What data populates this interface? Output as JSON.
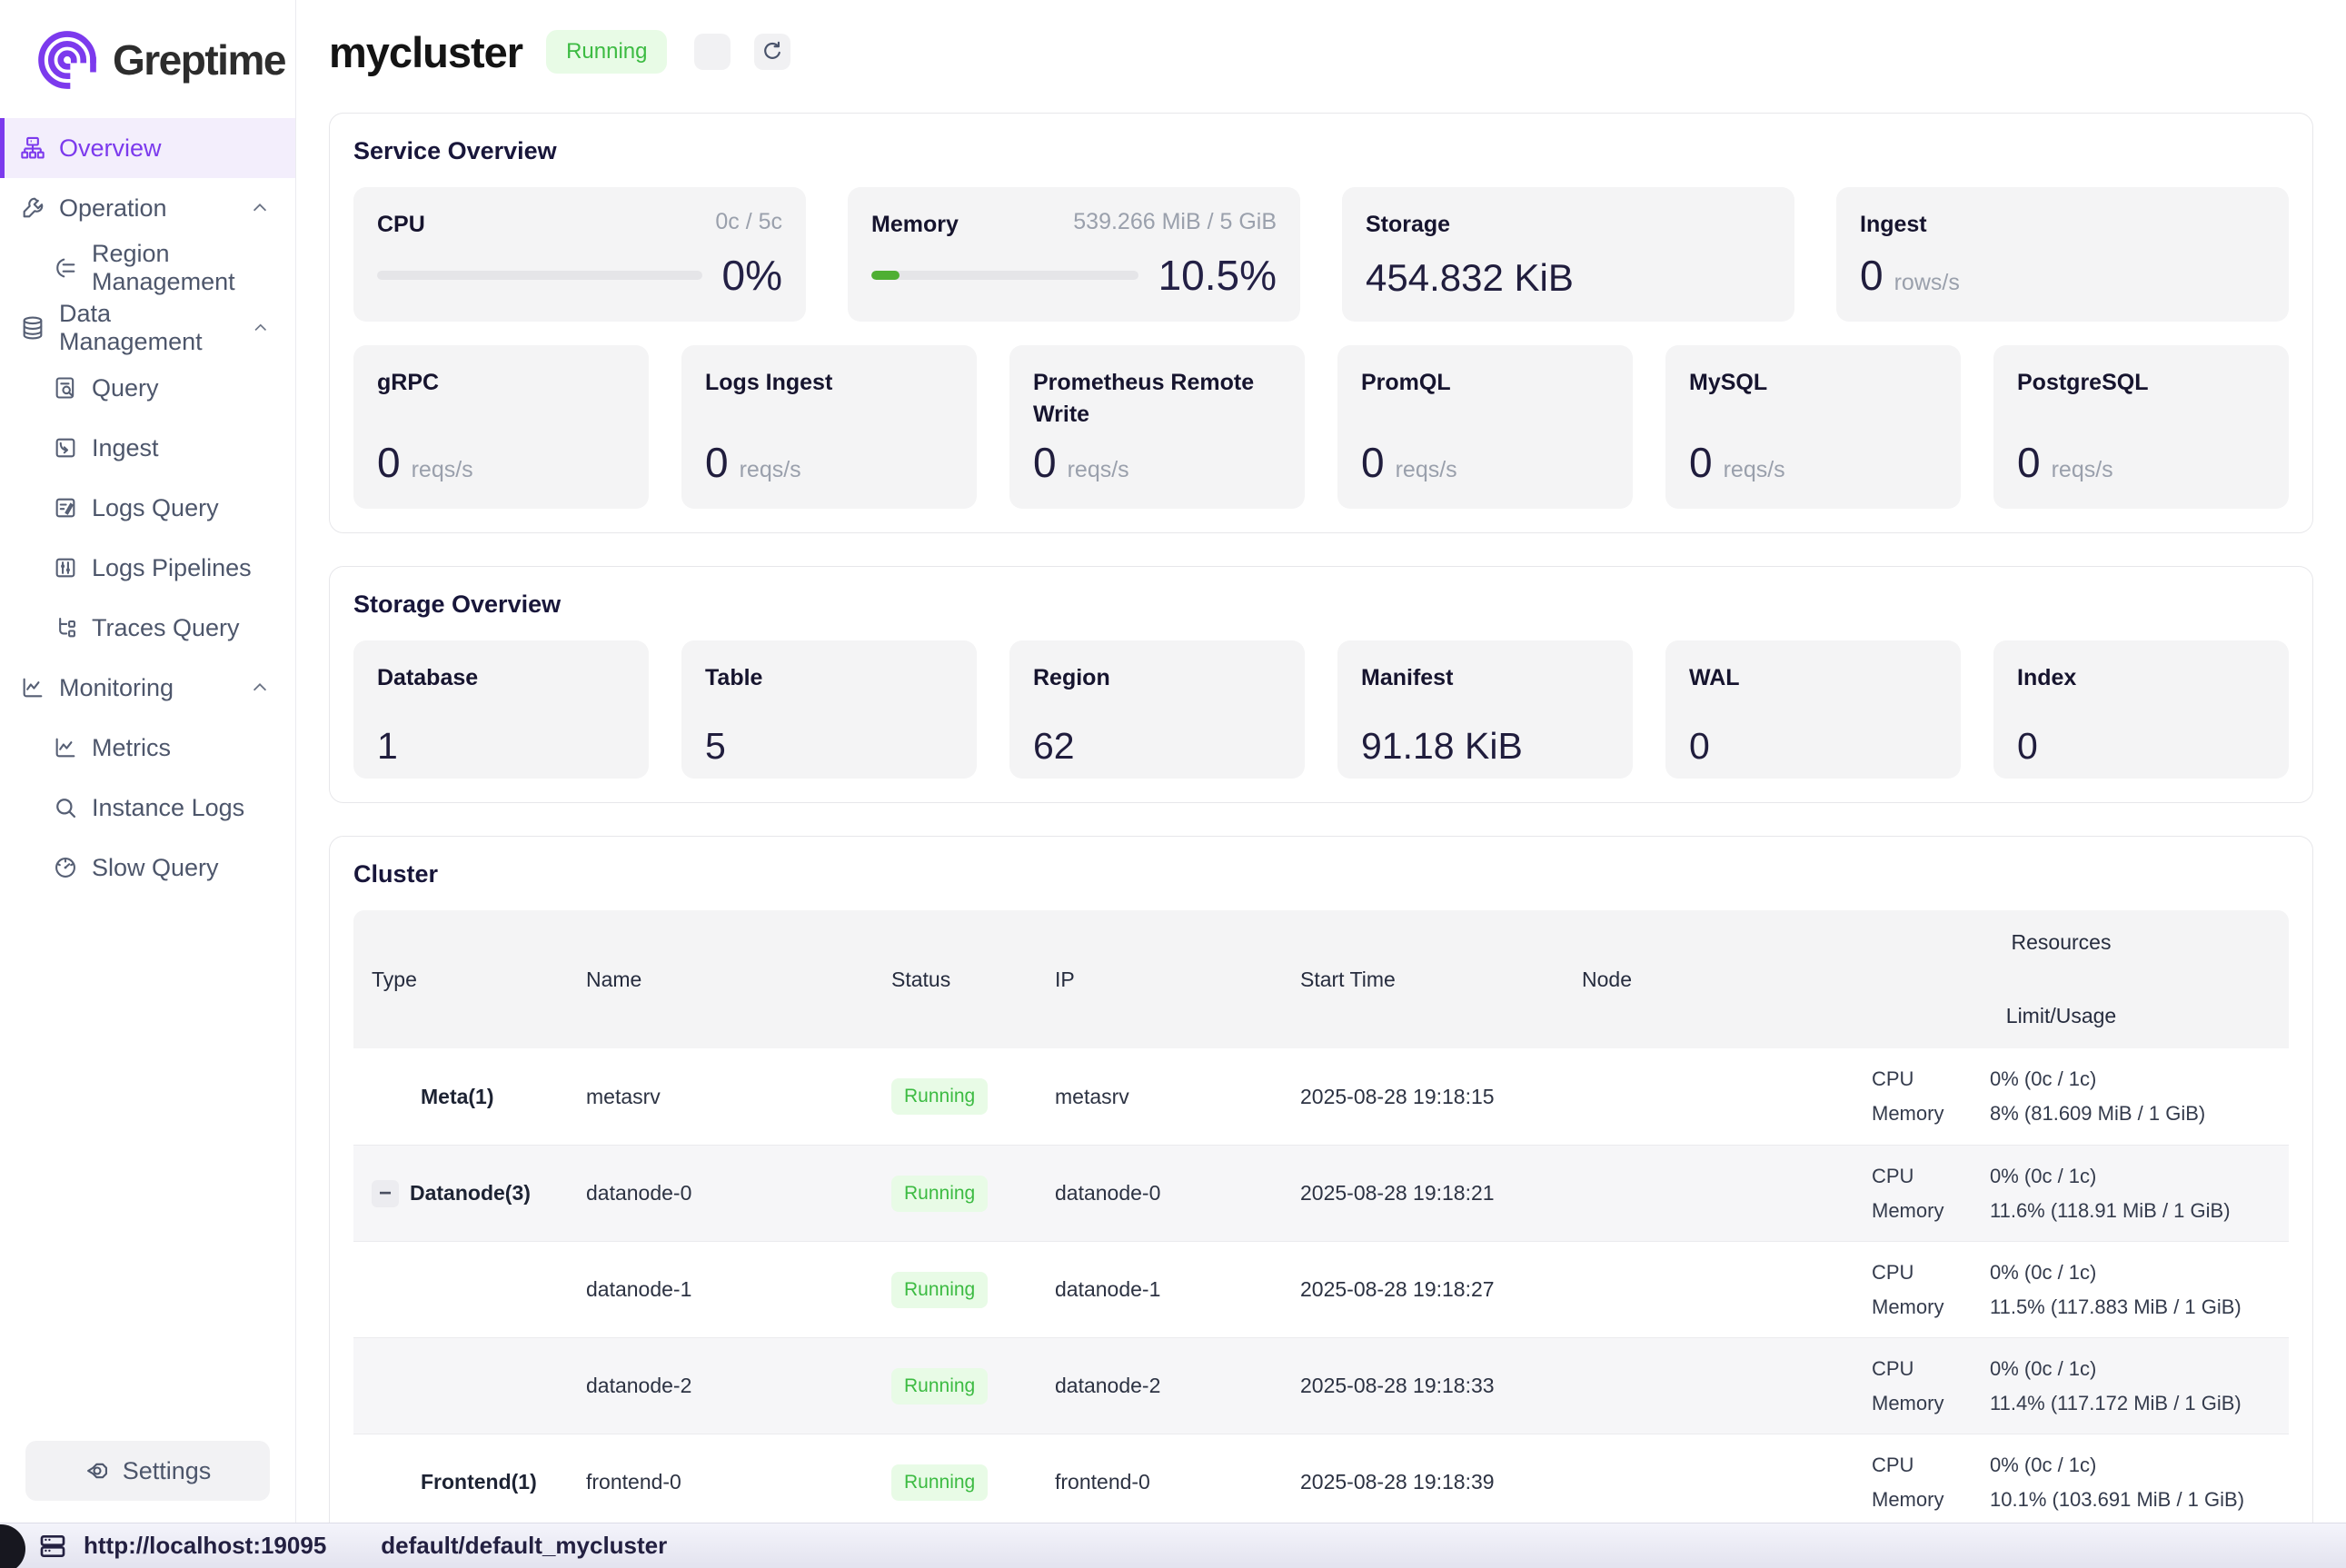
{
  "colors": {
    "accent_purple": "#7c3aed",
    "progress_green": "#4faf33",
    "badge_green_text": "#3cbb42",
    "badge_green_bg": "#e8fbe6",
    "card_bg": "#f4f4f5",
    "dark_text": "#1d1b38"
  },
  "brand": {
    "name": "Greptime",
    "logo_icon": "greptime-spiral-icon"
  },
  "sidebar": {
    "items": [
      {
        "label": "Overview",
        "icon": "overview-cluster-icon",
        "active": true
      },
      {
        "label": "Operation",
        "icon": "wrench-icon",
        "group": true
      },
      {
        "label": "Region Management",
        "icon": "region-management-icon"
      },
      {
        "label": "Data Management",
        "icon": "database-icon",
        "group": true
      },
      {
        "label": "Query",
        "icon": "query-doc-icon"
      },
      {
        "label": "Ingest",
        "icon": "ingest-folder-icon"
      },
      {
        "label": "Logs Query",
        "icon": "logs-query-icon"
      },
      {
        "label": "Logs Pipelines",
        "icon": "pipelines-sliders-icon"
      },
      {
        "label": "Traces Query",
        "icon": "traces-tree-icon"
      },
      {
        "label": "Monitoring",
        "icon": "monitor-chart-icon",
        "group": true
      },
      {
        "label": "Metrics",
        "icon": "metrics-chart-icon"
      },
      {
        "label": "Instance Logs",
        "icon": "search-icon"
      },
      {
        "label": "Slow Query",
        "icon": "gauge-icon"
      }
    ],
    "settings_label": "Settings"
  },
  "header": {
    "title": "mycluster",
    "status_badge": "Running"
  },
  "service_overview": {
    "title": "Service Overview",
    "cpu": {
      "title": "CPU",
      "limit": "0c / 5c",
      "percent": "0%",
      "bar_width": "0%"
    },
    "memory": {
      "title": "Memory",
      "limit": "539.266 MiB / 5 GiB",
      "percent": "10.5%",
      "bar_width": "10.5%"
    },
    "storage": {
      "title": "Storage",
      "value": "454.832 KiB"
    },
    "ingest": {
      "title": "Ingest",
      "value": "0",
      "unit": "rows/s"
    },
    "rate_cards": [
      {
        "title": "gRPC",
        "value": "0",
        "unit": "reqs/s"
      },
      {
        "title": "Logs Ingest",
        "value": "0",
        "unit": "reqs/s"
      },
      {
        "title": "Prometheus Remote Write",
        "value": "0",
        "unit": "reqs/s"
      },
      {
        "title": "PromQL",
        "value": "0",
        "unit": "reqs/s"
      },
      {
        "title": "MySQL",
        "value": "0",
        "unit": "reqs/s"
      },
      {
        "title": "PostgreSQL",
        "value": "0",
        "unit": "reqs/s"
      }
    ]
  },
  "storage_overview": {
    "title": "Storage Overview",
    "cards": [
      {
        "title": "Database",
        "value": "1"
      },
      {
        "title": "Table",
        "value": "5"
      },
      {
        "title": "Region",
        "value": "62"
      },
      {
        "title": "Manifest",
        "value": "91.18 KiB"
      },
      {
        "title": "WAL",
        "value": "0"
      },
      {
        "title": "Index",
        "value": "0"
      }
    ]
  },
  "cluster": {
    "title": "Cluster",
    "columns": {
      "type": "Type",
      "name": "Name",
      "status": "Status",
      "ip": "IP",
      "start_time": "Start Time",
      "node": "Node",
      "resources": "Resources",
      "limit_usage": "Limit/Usage"
    },
    "cpu_label": "CPU",
    "memory_label": "Memory",
    "collapse_glyph": "−",
    "rows": [
      {
        "type": "Meta(1)",
        "name": "metasrv",
        "status": "Running",
        "ip": "metasrv",
        "start_time": "2025-08-28 19:18:15",
        "node": "",
        "cpu": "0% (0c / 1c)",
        "memory": "8% (81.609 MiB / 1 GiB)"
      },
      {
        "type": "Datanode(3)",
        "name": "datanode-0",
        "status": "Running",
        "ip": "datanode-0",
        "start_time": "2025-08-28 19:18:21",
        "node": "",
        "cpu": "0% (0c / 1c)",
        "memory": "11.6% (118.91 MiB / 1 GiB)"
      },
      {
        "type": "",
        "name": "datanode-1",
        "status": "Running",
        "ip": "datanode-1",
        "start_time": "2025-08-28 19:18:27",
        "node": "",
        "cpu": "0% (0c / 1c)",
        "memory": "11.5% (117.883 MiB / 1 GiB)"
      },
      {
        "type": "",
        "name": "datanode-2",
        "status": "Running",
        "ip": "datanode-2",
        "start_time": "2025-08-28 19:18:33",
        "node": "",
        "cpu": "0% (0c / 1c)",
        "memory": "11.4% (117.172 MiB / 1 GiB)"
      },
      {
        "type": "Frontend(1)",
        "name": "frontend-0",
        "status": "Running",
        "ip": "frontend-0",
        "start_time": "2025-08-28 19:18:39",
        "node": "",
        "cpu": "0% (0c / 1c)",
        "memory": "10.1% (103.691 MiB / 1 GiB)"
      }
    ]
  },
  "statusbar": {
    "url": "http://localhost:19095",
    "database": "default/default_mycluster"
  }
}
